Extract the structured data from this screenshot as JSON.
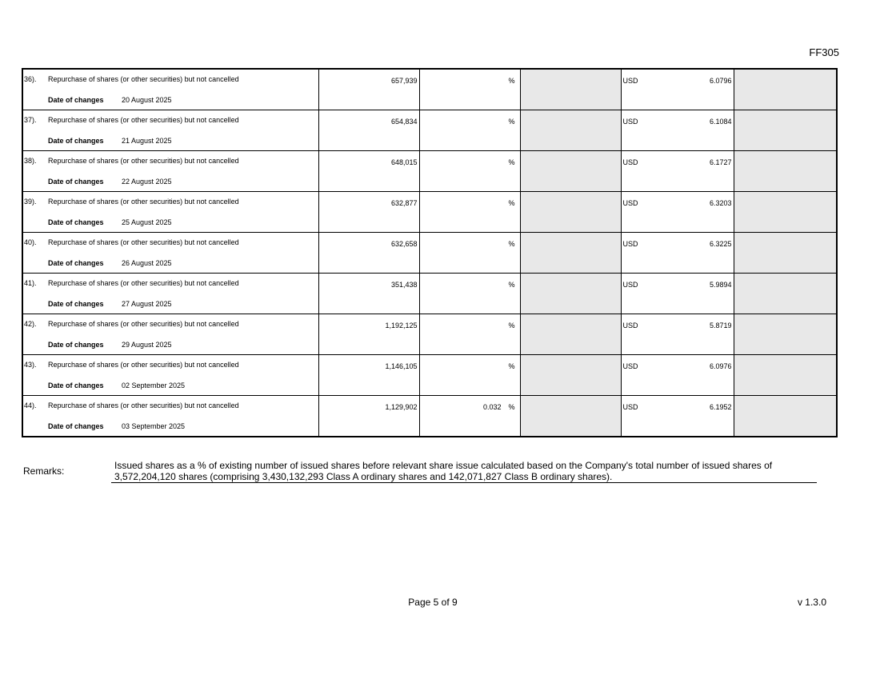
{
  "form_code": "FF305",
  "date_label": "Date of changes",
  "rows": [
    {
      "index": "36).",
      "description": "Repurchase of shares (or other securities) but not cancelled",
      "shares": "657,939",
      "pct_value": "",
      "pct": "%",
      "currency": "USD",
      "price": "6.0796",
      "date": "20 August 2025"
    },
    {
      "index": "37).",
      "description": "Repurchase of shares (or other securities) but not cancelled",
      "shares": "654,834",
      "pct_value": "",
      "pct": "%",
      "currency": "USD",
      "price": "6.1084",
      "date": "21 August 2025"
    },
    {
      "index": "38).",
      "description": "Repurchase of shares (or other securities) but not cancelled",
      "shares": "648,015",
      "pct_value": "",
      "pct": "%",
      "currency": "USD",
      "price": "6.1727",
      "date": "22 August 2025"
    },
    {
      "index": "39).",
      "description": "Repurchase of shares (or other securities) but not cancelled",
      "shares": "632,877",
      "pct_value": "",
      "pct": "%",
      "currency": "USD",
      "price": "6.3203",
      "date": "25 August 2025"
    },
    {
      "index": "40).",
      "description": "Repurchase of shares (or other securities) but not cancelled",
      "shares": "632,658",
      "pct_value": "",
      "pct": "%",
      "currency": "USD",
      "price": "6.3225",
      "date": "26 August 2025"
    },
    {
      "index": "41).",
      "description": "Repurchase of shares (or other securities) but not cancelled",
      "shares": "351,438",
      "pct_value": "",
      "pct": "%",
      "currency": "USD",
      "price": "5.9894",
      "date": "27 August 2025"
    },
    {
      "index": "42).",
      "description": "Repurchase of shares (or other securities) but not cancelled",
      "shares": "1,192,125",
      "pct_value": "",
      "pct": "%",
      "currency": "USD",
      "price": "5.8719",
      "date": "29 August 2025"
    },
    {
      "index": "43).",
      "description": "Repurchase of shares (or other securities) but not cancelled",
      "shares": "1,146,105",
      "pct_value": "",
      "pct": "%",
      "currency": "USD",
      "price": "6.0976",
      "date": "02 September 2025"
    },
    {
      "index": "44).",
      "description": "Repurchase of shares (or other securities) but not cancelled",
      "shares": "1,129,902",
      "pct_value": "0.032",
      "pct": "%",
      "currency": "USD",
      "price": "6.1952",
      "date": "03 September 2025"
    }
  ],
  "remarks": {
    "label": "Remarks:",
    "text": "Issued shares as a % of existing number of issued shares before relevant share issue calculated based on the Company's total number of issued shares of 3,572,204,120 shares (comprising 3,430,132,293 Class A ordinary shares and 142,071,827 Class B ordinary shares)."
  },
  "footer": {
    "page": "Page 5 of 9",
    "version": "v 1.3.0"
  },
  "colors": {
    "shaded_cell": "#e8e8e8"
  }
}
